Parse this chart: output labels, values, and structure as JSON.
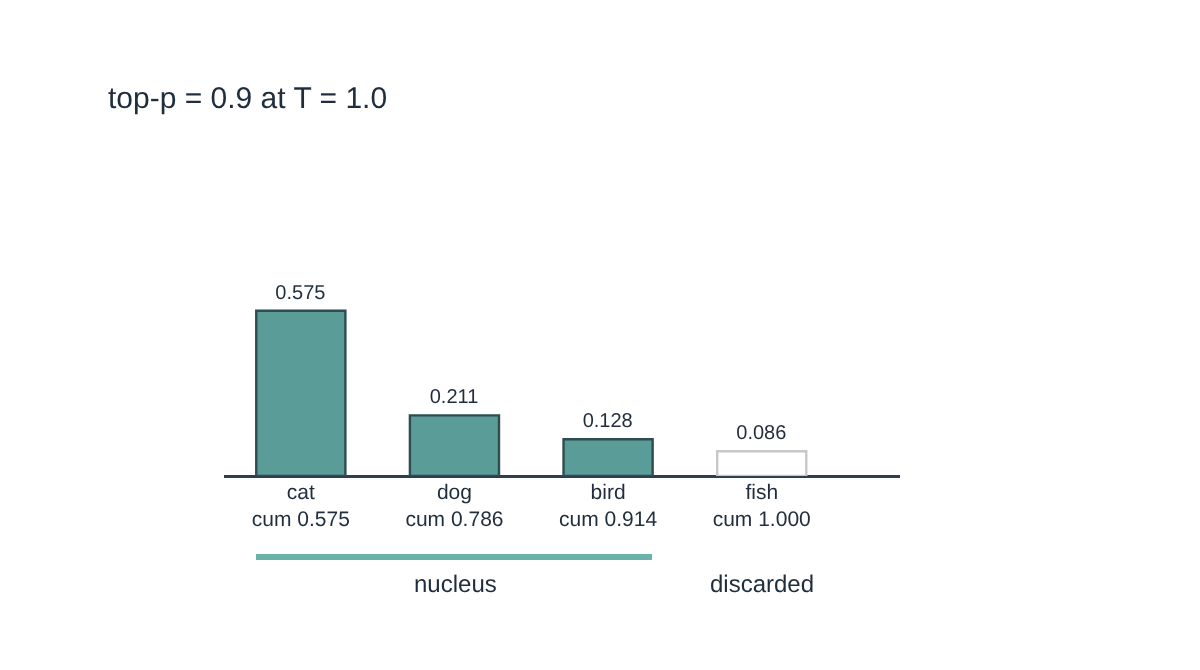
{
  "chart_data": {
    "type": "bar",
    "title": "top-p = 0.9 at T = 1.0",
    "categories": [
      "cat\ncum 0.575",
      "dog\ncum 0.786",
      "bird\ncum 0.914",
      "fish\ncum 1.000"
    ],
    "values": [
      0.575,
      0.211,
      0.128,
      0.086
    ],
    "colors": [
      "#5a9c98",
      "#5a9c98",
      "#5a9c98",
      "#ffffff"
    ],
    "data_labels": true,
    "annotations": [
      "nucleus",
      "discarded"
    ],
    "grid": false
  }
}
